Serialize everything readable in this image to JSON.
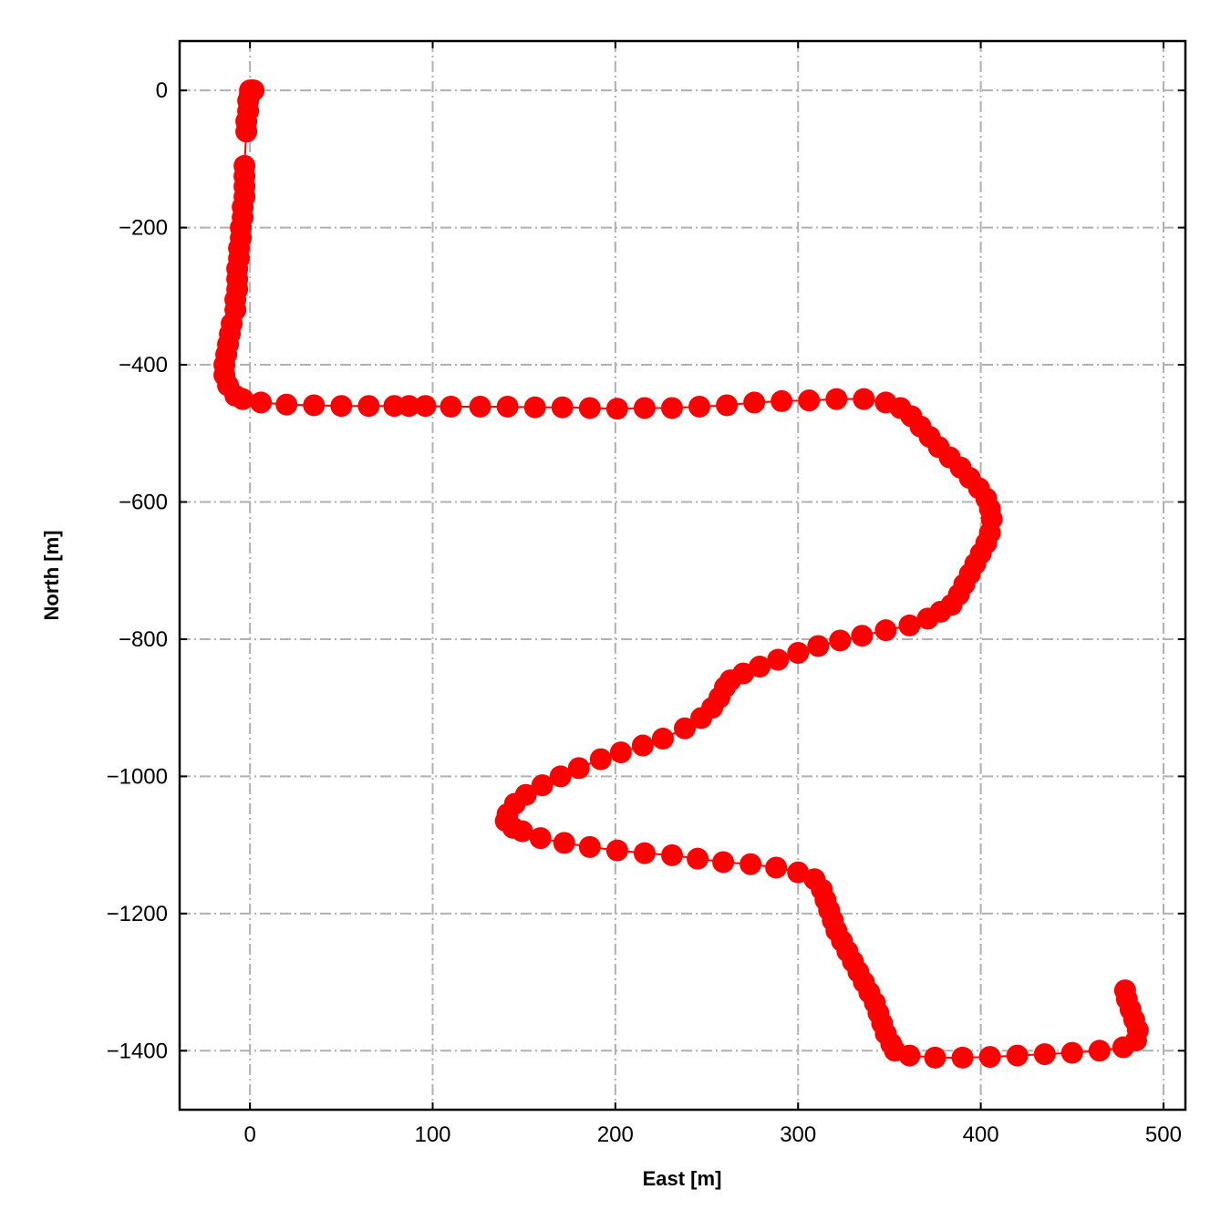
{
  "chart_data": {
    "type": "scatter",
    "xlabel": "East [m]",
    "ylabel": "North [m]",
    "color": "#ff0000",
    "grid": true,
    "xlim": [
      -38.5,
      512
    ],
    "ylim": [
      -1486,
      72
    ],
    "xticks": [
      0,
      100,
      200,
      300,
      400,
      500
    ],
    "yticks": [
      {
        "value": 0,
        "label": "0"
      },
      {
        "value": -200,
        "label": "−200"
      },
      {
        "value": -400,
        "label": "−400"
      },
      {
        "value": -600,
        "label": "−600"
      },
      {
        "value": -800,
        "label": "−800"
      },
      {
        "value": -1000,
        "label": "−1000"
      },
      {
        "value": -1200,
        "label": "−1200"
      },
      {
        "value": -1400,
        "label": "−1400"
      }
    ],
    "x": [
      0,
      1,
      2,
      0,
      -1,
      -1,
      -2,
      -2,
      -3,
      -3,
      -3,
      -3,
      -4,
      -4,
      -5,
      -5,
      -6,
      -6,
      -7,
      -7,
      -7,
      -8,
      -8,
      -10,
      -11,
      -12,
      -13,
      -14,
      -14,
      -12,
      -8,
      -4,
      6,
      20,
      35,
      50,
      65,
      79,
      87,
      96,
      110,
      126,
      141,
      156,
      171,
      186,
      201,
      216,
      231,
      246,
      261,
      276,
      291,
      306,
      321,
      336,
      348,
      356,
      362,
      367,
      372,
      377,
      383,
      389,
      394,
      399,
      403,
      405,
      406,
      405,
      403,
      400,
      397,
      394,
      391,
      388,
      384,
      378,
      371,
      361,
      348,
      335,
      323,
      311,
      300,
      289,
      279,
      270,
      263,
      260,
      257,
      253,
      247,
      238,
      226,
      215,
      203,
      192,
      180,
      170,
      160,
      151,
      145,
      141,
      140,
      144,
      149,
      159,
      172,
      186,
      201,
      216,
      231,
      245,
      259,
      274,
      288,
      300,
      309,
      313,
      315,
      317,
      319,
      321,
      324,
      327,
      330,
      333,
      336,
      339,
      342,
      344,
      346,
      348,
      351,
      353,
      361,
      375,
      390,
      405,
      420,
      435,
      450,
      465,
      478,
      485,
      486,
      484,
      482,
      480,
      479
    ],
    "values": [
      0,
      0,
      0,
      -5,
      -15,
      -30,
      -45,
      -60,
      -110,
      -125,
      -140,
      -155,
      -170,
      -185,
      -200,
      -215,
      -230,
      -245,
      -260,
      -275,
      -290,
      -305,
      -320,
      -340,
      -355,
      -370,
      -385,
      -400,
      -415,
      -430,
      -445,
      -450,
      -455,
      -458,
      -459,
      -460,
      -460,
      -460,
      -460,
      -460,
      -461,
      -461,
      -461,
      -462,
      -462,
      -463,
      -464,
      -463,
      -463,
      -461,
      -459,
      -455,
      -453,
      -452,
      -450,
      -450,
      -455,
      -463,
      -475,
      -490,
      -505,
      -520,
      -535,
      -550,
      -565,
      -580,
      -595,
      -610,
      -625,
      -645,
      -660,
      -675,
      -690,
      -705,
      -720,
      -735,
      -750,
      -760,
      -770,
      -780,
      -787,
      -795,
      -802,
      -810,
      -820,
      -830,
      -840,
      -850,
      -860,
      -870,
      -885,
      -900,
      -915,
      -930,
      -945,
      -955,
      -965,
      -975,
      -988,
      -1000,
      -1013,
      -1027,
      -1040,
      -1055,
      -1065,
      -1075,
      -1080,
      -1090,
      -1097,
      -1103,
      -1108,
      -1112,
      -1115,
      -1120,
      -1125,
      -1128,
      -1133,
      -1140,
      -1150,
      -1165,
      -1180,
      -1195,
      -1210,
      -1225,
      -1240,
      -1255,
      -1270,
      -1285,
      -1300,
      -1315,
      -1330,
      -1345,
      -1360,
      -1375,
      -1390,
      -1400,
      -1407,
      -1410,
      -1410,
      -1409,
      -1407,
      -1405,
      -1403,
      -1400,
      -1395,
      -1385,
      -1370,
      -1355,
      -1340,
      -1325,
      -1312
    ]
  }
}
